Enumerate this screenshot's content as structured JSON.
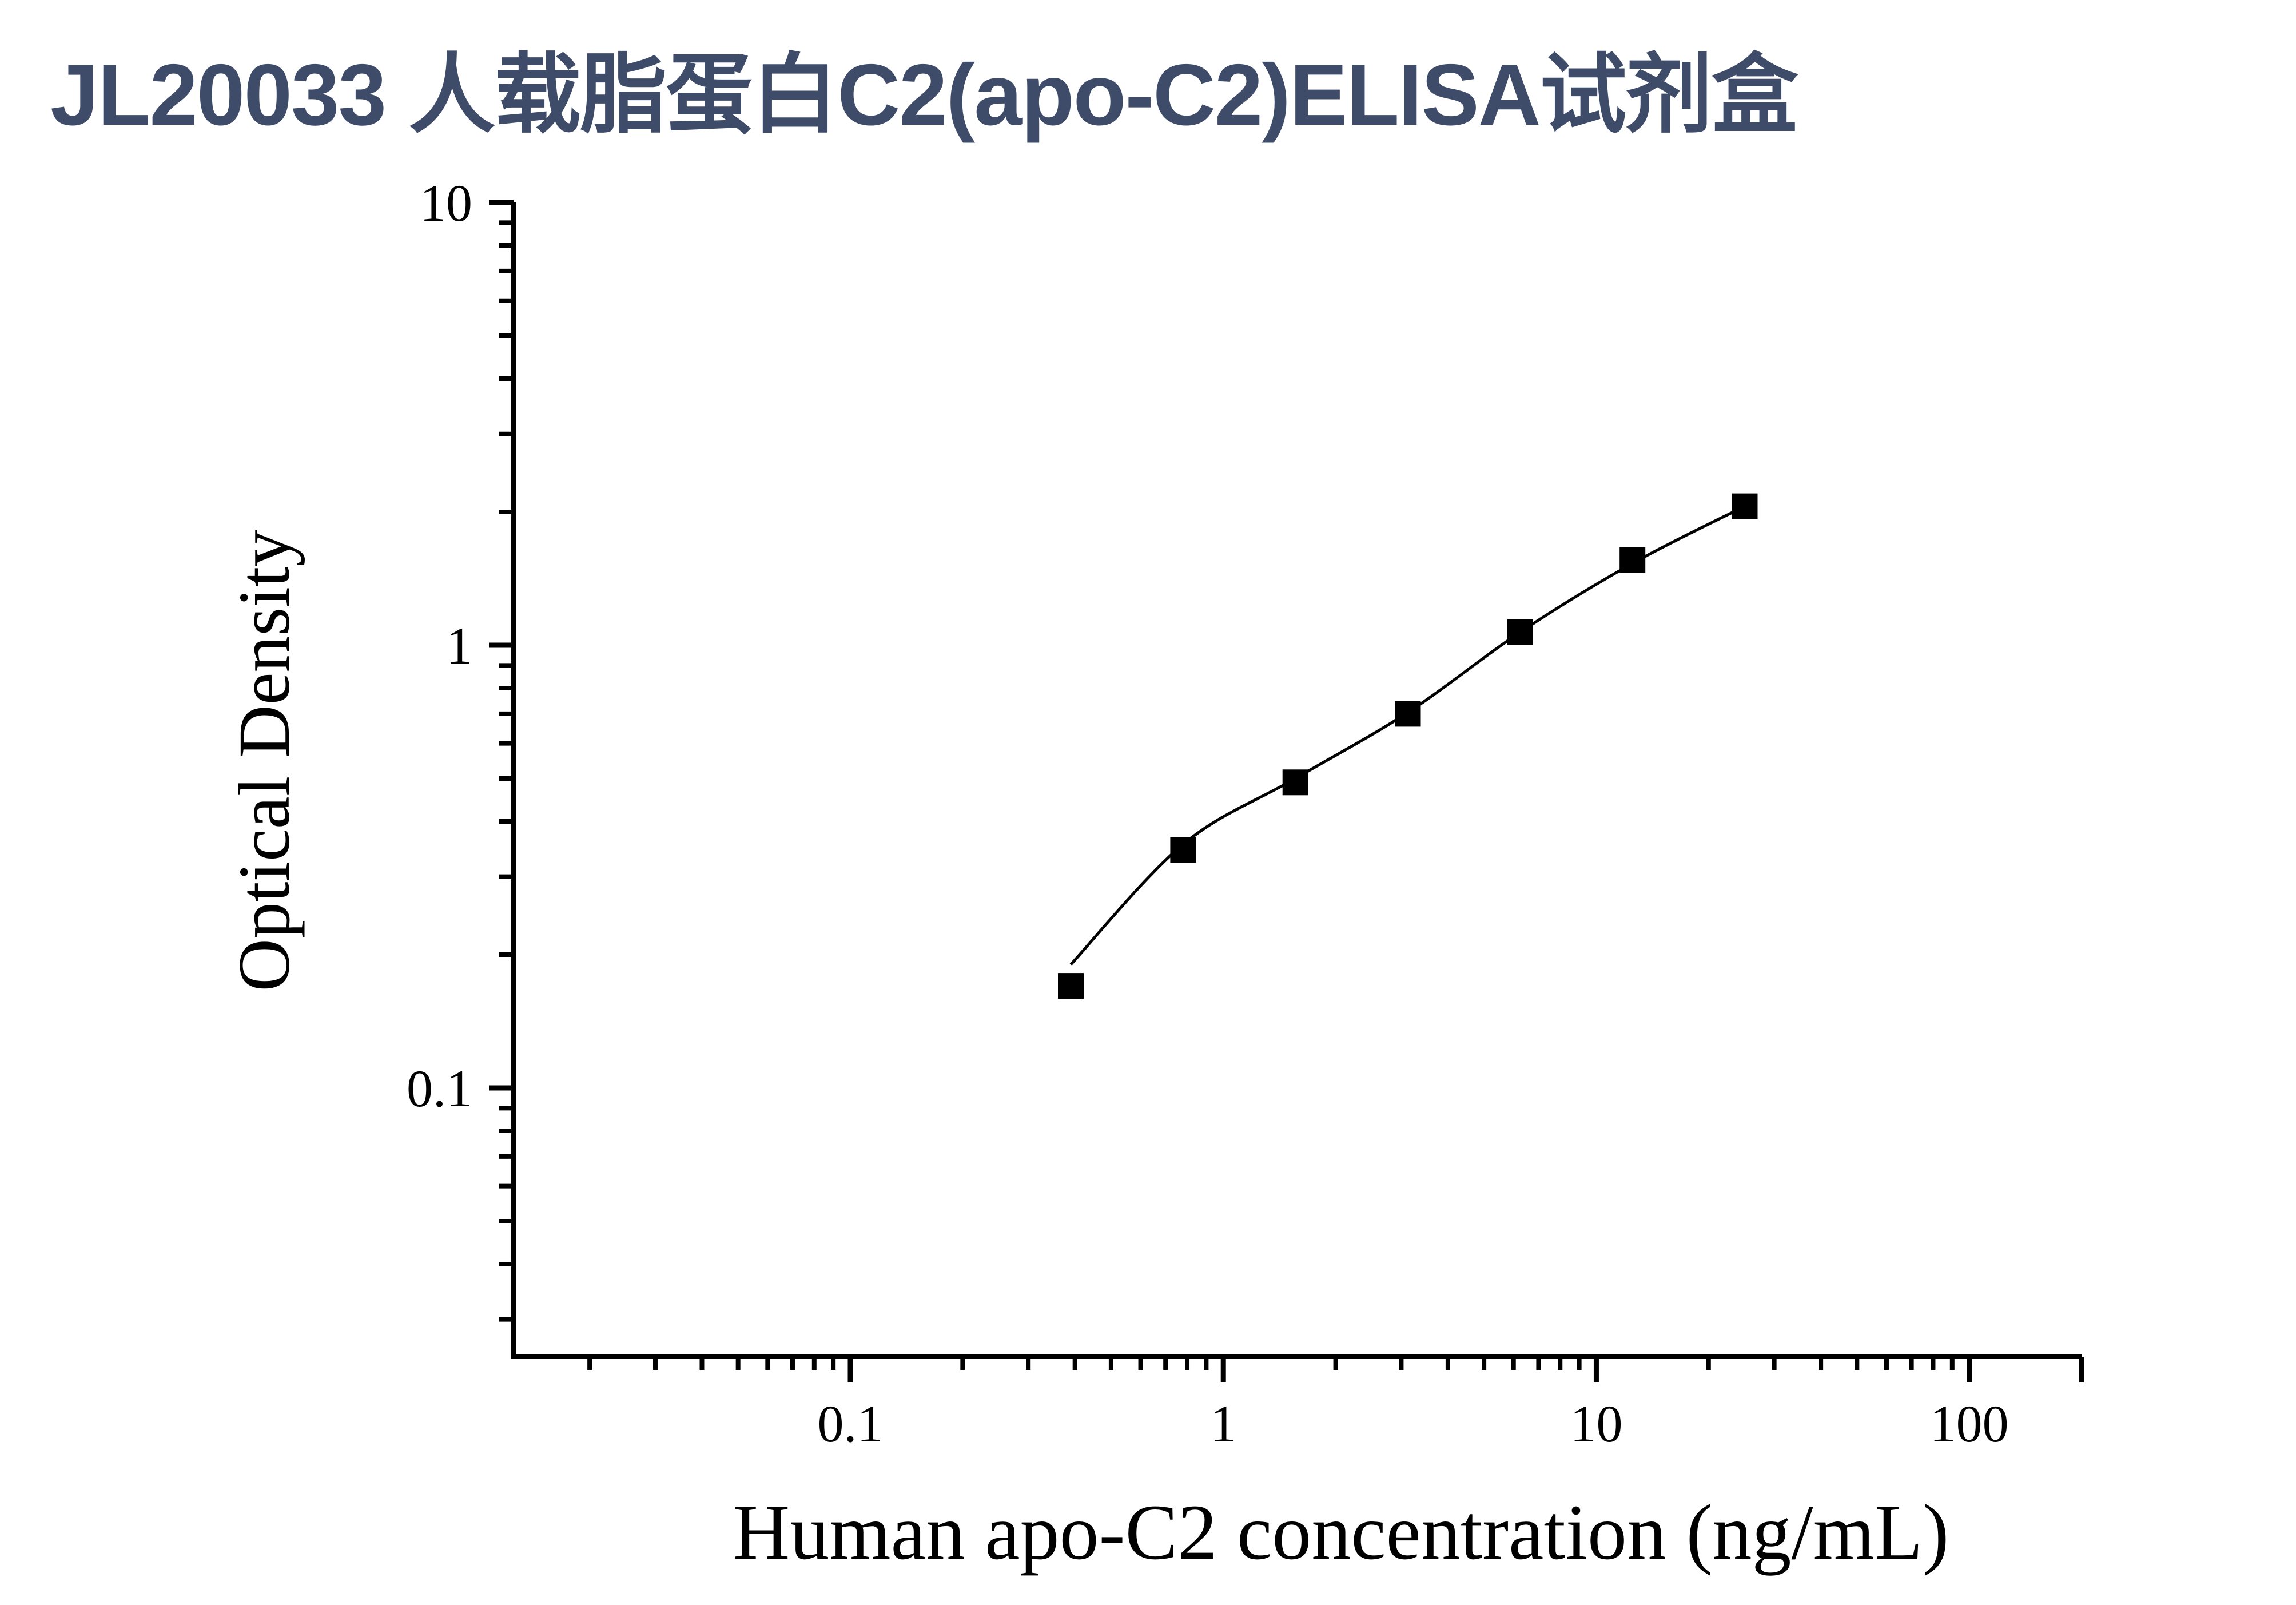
{
  "page": {
    "title": "JL20033 人载脂蛋白C2(apo-C2)ELISA试剂盒",
    "title_color": "#3e4c69",
    "background": "#ffffff"
  },
  "chart_data": {
    "type": "scatter",
    "title": "JL20033 人载脂蛋白C2(apo-C2)ELISA试剂盒",
    "xlabel": "Human apo-C2 concentration (ng/mL)",
    "ylabel": "Optical Density",
    "x_unit": "ng/mL",
    "x_scale": "log",
    "y_scale": "log",
    "x": [
      0.39,
      0.78,
      1.56,
      3.125,
      6.25,
      12.5,
      25
    ],
    "y": [
      0.17,
      0.345,
      0.49,
      0.7,
      1.07,
      1.56,
      2.06
    ],
    "fit_line": [
      [
        0.39,
        0.19
      ],
      [
        0.78,
        0.355
      ],
      [
        1.56,
        0.5
      ],
      [
        3.125,
        0.705
      ],
      [
        6.25,
        1.07
      ],
      [
        12.5,
        1.53
      ],
      [
        25,
        2.06
      ]
    ],
    "xlim": [
      0.0125,
      200
    ],
    "ylim": [
      0.0247,
      10
    ],
    "x_ticks": {
      "values": [
        0.1,
        1,
        10,
        100
      ],
      "labels": [
        "0.1",
        "1",
        "10",
        "100"
      ]
    },
    "y_ticks": {
      "values": [
        10,
        1,
        0.1
      ],
      "labels": [
        "10",
        "1",
        "0.1"
      ]
    },
    "grid": false,
    "legend": false,
    "marker": "filled-square",
    "marker_size_px": 45,
    "colors": {
      "marker": "#000000",
      "line": "#000000",
      "axis": "#000000",
      "text": "#000000"
    }
  }
}
